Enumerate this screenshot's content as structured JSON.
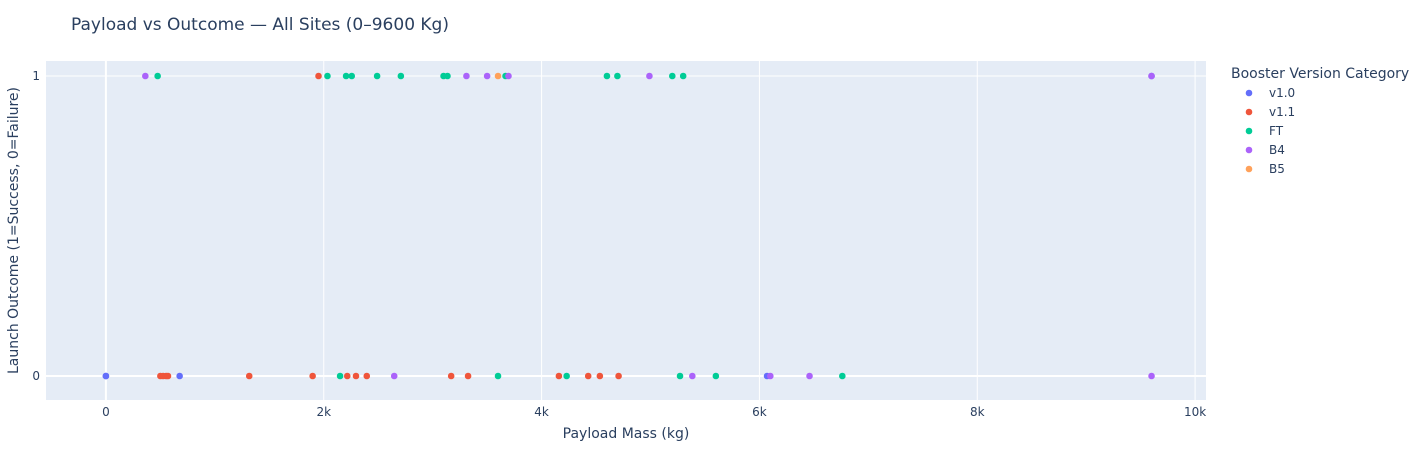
{
  "chart_data": {
    "type": "scatter",
    "title": "Payload vs Outcome — All Sites (0–9600 Kg)",
    "xlabel": "Payload Mass (kg)",
    "ylabel": "Launch Outcome (1=Success, 0=Failure)",
    "xlim": [
      -550,
      10100
    ],
    "ylim": [
      -0.08,
      1.05
    ],
    "x_ticks": [
      {
        "value": 0,
        "label": "0"
      },
      {
        "value": 2000,
        "label": "2k"
      },
      {
        "value": 4000,
        "label": "4k"
      },
      {
        "value": 6000,
        "label": "6k"
      },
      {
        "value": 8000,
        "label": "8k"
      },
      {
        "value": 10000,
        "label": "10k"
      }
    ],
    "y_ticks": [
      {
        "value": 0,
        "label": "0"
      },
      {
        "value": 1,
        "label": "1"
      }
    ],
    "grid": true,
    "legend_title": "Booster Version Category",
    "legend_position": "right",
    "series": [
      {
        "name": "v1.0",
        "color": "#636efa",
        "points": [
          [
            0,
            0
          ],
          [
            0,
            0
          ],
          [
            677,
            0
          ],
          [
            6070,
            0
          ],
          [
            9600,
            1
          ]
        ]
      },
      {
        "name": "v1.1",
        "color": "#ef553b",
        "points": [
          [
            500,
            0
          ],
          [
            525,
            0
          ],
          [
            553,
            0
          ],
          [
            570,
            0
          ],
          [
            1316,
            0
          ],
          [
            1898,
            0
          ],
          [
            1952,
            1
          ],
          [
            2216,
            0
          ],
          [
            2296,
            0
          ],
          [
            2395,
            0
          ],
          [
            3170,
            0
          ],
          [
            3325,
            0
          ],
          [
            4159,
            0
          ],
          [
            4428,
            0
          ],
          [
            4535,
            0
          ],
          [
            4707,
            0
          ]
        ]
      },
      {
        "name": "FT",
        "color": "#00cc96",
        "points": [
          [
            475,
            1
          ],
          [
            2034,
            1
          ],
          [
            2150,
            0
          ],
          [
            2205,
            1
          ],
          [
            2257,
            1
          ],
          [
            2490,
            1
          ],
          [
            2708,
            1
          ],
          [
            3100,
            1
          ],
          [
            3136,
            1
          ],
          [
            3600,
            0
          ],
          [
            3669,
            1
          ],
          [
            4230,
            0
          ],
          [
            4600,
            1
          ],
          [
            4696,
            1
          ],
          [
            5200,
            1
          ],
          [
            5300,
            1
          ],
          [
            5271,
            0
          ],
          [
            5600,
            0
          ],
          [
            6761,
            0
          ]
        ]
      },
      {
        "name": "B4",
        "color": "#ab63fa",
        "points": [
          [
            362,
            1
          ],
          [
            2647,
            0
          ],
          [
            3310,
            1
          ],
          [
            3500,
            1
          ],
          [
            3696,
            1
          ],
          [
            4990,
            1
          ],
          [
            5384,
            0
          ],
          [
            6100,
            0
          ],
          [
            6460,
            0
          ],
          [
            9600,
            1
          ],
          [
            9600,
            0
          ]
        ]
      },
      {
        "name": "B5",
        "color": "#ffa15a",
        "points": [
          [
            3600,
            1
          ]
        ]
      }
    ]
  }
}
